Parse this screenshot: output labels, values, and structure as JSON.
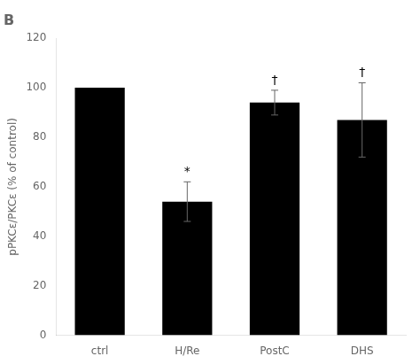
{
  "chart_data": {
    "type": "bar",
    "title": "B",
    "categories": [
      "ctrl",
      "H/Re",
      "PostC",
      "DHS"
    ],
    "values": [
      100,
      54,
      94,
      87
    ],
    "errors": [
      0,
      8,
      5,
      15
    ],
    "color": "#000000",
    "ylabel": "pPKCε/PKCε (% of control)",
    "ylim": [
      0,
      120
    ],
    "yticks": [
      0,
      20,
      40,
      60,
      80,
      100,
      120
    ],
    "annotations": [
      {
        "category": "H/Re",
        "text": "*"
      },
      {
        "category": "PostC",
        "text": "†"
      },
      {
        "category": "DHS",
        "text": "†"
      }
    ],
    "grid": false
  }
}
